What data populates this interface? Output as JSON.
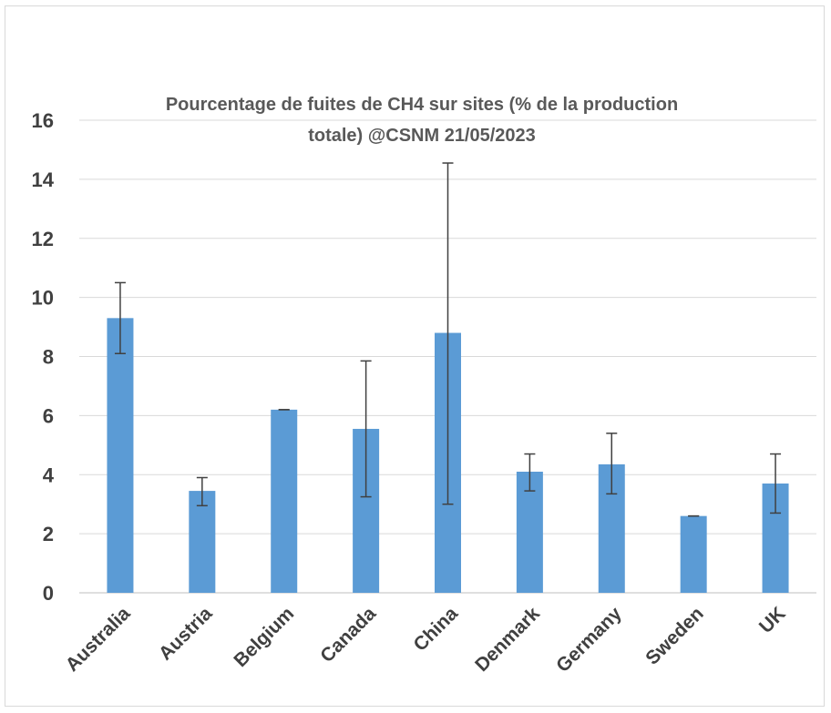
{
  "chart_data": {
    "type": "bar",
    "title_lines": [
      "Pourcentage de fuites de CH4 sur sites (% de la production",
      "totale) @CSNM 21/05/2023"
    ],
    "categories": [
      "Australia",
      "Austria",
      "Belgium",
      "Canada",
      "China",
      "Denmark",
      "Germany",
      "Sweden",
      "UK"
    ],
    "values": [
      9.3,
      3.45,
      6.2,
      5.55,
      8.8,
      4.1,
      4.35,
      2.6,
      3.7
    ],
    "error_low": [
      8.1,
      2.95,
      6.2,
      3.25,
      3.0,
      3.45,
      3.35,
      2.6,
      2.7
    ],
    "error_high": [
      10.5,
      3.9,
      6.2,
      7.85,
      14.55,
      4.7,
      5.4,
      2.6,
      4.7
    ],
    "ylim": [
      0,
      16
    ],
    "yticks": [
      "0",
      "2",
      "4",
      "6",
      "8",
      "10",
      "12",
      "14",
      "16"
    ],
    "grid": true,
    "bar_color": "#5B9BD5",
    "error_color": "#404040",
    "grid_color": "#d9d9d9"
  }
}
